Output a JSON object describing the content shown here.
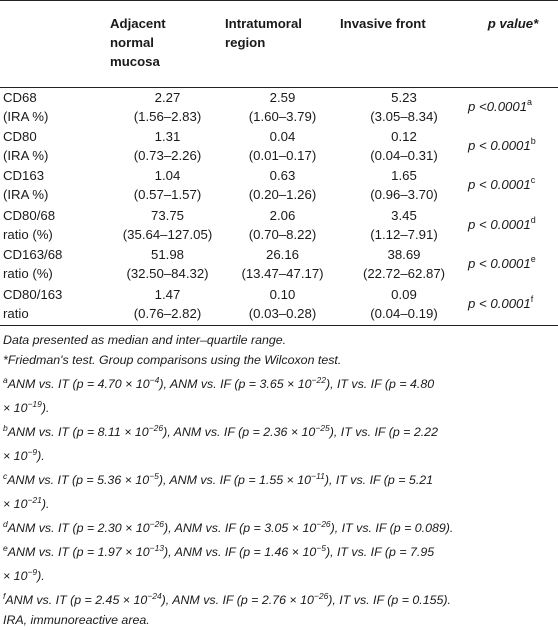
{
  "table": {
    "headers": [
      "",
      "Adjacent normal mucosa",
      "Intratumoral region",
      "Invasive front",
      "p value*"
    ],
    "header_lines": {
      "c1": [
        "Adjacent",
        "normal",
        "mucosa"
      ],
      "c2": [
        "Intratumoral",
        "region"
      ],
      "c3": [
        "Invasive front"
      ],
      "c4": [
        "p value*"
      ]
    },
    "rows": [
      {
        "label1": "CD68",
        "label2": "(IRA %)",
        "anm": "2.27",
        "anm_iqr": "(1.56–2.83)",
        "it": "2.59",
        "it_iqr": "(1.60–3.79)",
        "if": "5.23",
        "if_iqr": "(3.05–8.34)",
        "p": "p <0.0001",
        "p_sup": "a"
      },
      {
        "label1": "CD80",
        "label2": "(IRA %)",
        "anm": "1.31",
        "anm_iqr": "(0.73–2.26)",
        "it": "0.04",
        "it_iqr": "(0.01–0.17)",
        "if": "0.12",
        "if_iqr": "(0.04–0.31)",
        "p": "p < 0.0001",
        "p_sup": "b"
      },
      {
        "label1": "CD163",
        "label2": "(IRA %)",
        "anm": "1.04",
        "anm_iqr": "(0.57–1.57)",
        "it": "0.63",
        "it_iqr": "(0.20–1.26)",
        "if": "1.65",
        "if_iqr": "(0.96–3.70)",
        "p": "p < 0.0001",
        "p_sup": "c"
      },
      {
        "label1": "CD80/68",
        "label2": "ratio (%)",
        "anm": "73.75",
        "anm_iqr": "(35.64–127.05)",
        "it": "2.06",
        "it_iqr": "(0.70–8.22)",
        "if": "3.45",
        "if_iqr": "(1.12–7.91)",
        "p": "p < 0.0001",
        "p_sup": "d"
      },
      {
        "label1": "CD163/68",
        "label2": "ratio (%)",
        "anm": "51.98",
        "anm_iqr": "(32.50–84.32)",
        "it": "26.16",
        "it_iqr": "(13.47–47.17)",
        "if": "38.69",
        "if_iqr": "(22.72–62.87)",
        "p": "p < 0.0001",
        "p_sup": "e"
      },
      {
        "label1": "CD80/163",
        "label2": "ratio",
        "anm": "1.47",
        "anm_iqr": "(0.76–2.82)",
        "it": "0.10",
        "it_iqr": "(0.03–0.28)",
        "if": "0.09",
        "if_iqr": "(0.04–0.19)",
        "p": "p < 0.0001",
        "p_sup": "f"
      }
    ]
  },
  "notes": {
    "n1": "Data presented as median and inter–quartile range.",
    "n2": "*Friedman's test. Group comparisons using the Wilcoxon test.",
    "a": {
      "sup": "a",
      "l1": "ANM vs. IT (p = 4.70 × 10",
      "e1": "−4",
      "m1": "), ANM vs. IF (p = 3.65 × 10",
      "e2": "−22",
      "m2": "), IT vs. IF (p = 4.80",
      "l2": "× 10",
      "e3": "−19",
      "end": ")."
    },
    "b": {
      "sup": "b",
      "l1": "ANM vs. IT (p = 8.11 × 10",
      "e1": "−26",
      "m1": "), ANM vs. IF (p = 2.36 × 10",
      "e2": "−25",
      "m2": "), IT vs. IF (p = 2.22",
      "l2": "× 10",
      "e3": "−9",
      "end": ")."
    },
    "c": {
      "sup": "c",
      "l1": "ANM vs. IT (p = 5.36 × 10",
      "e1": "−5",
      "m1": "), ANM vs. IF (p = 1.55 × 10",
      "e2": "−11",
      "m2": "), IT vs. IF (p = 5.21",
      "l2": "× 10",
      "e3": "−21",
      "end": ")."
    },
    "d": {
      "sup": "d",
      "l1": "ANM vs. IT (p = 2.30 × 10",
      "e1": "−26",
      "m1": "), ANM vs. IF (p = 3.05 × 10",
      "e2": "−26",
      "m2": "), IT vs. IF (p = 0.089)."
    },
    "e": {
      "sup": "e",
      "l1": "ANM vs. IT (p = 1.97 × 10",
      "e1": "−13",
      "m1": "), ANM vs. IF (p = 1.46 × 10",
      "e2": "−5",
      "m2": "), IT vs. IF (p = 7.95",
      "l2": "× 10",
      "e3": "−9",
      "end": ")."
    },
    "f": {
      "sup": "f",
      "l1": "ANM vs. IT (p = 2.45 × 10",
      "e1": "−24",
      "m1": "), ANM vs. IF (p = 2.76 × 10",
      "e2": "−26",
      "m2": "), IT vs. IF (p = 0.155)."
    },
    "n3": "IRA, immunoreactive area."
  }
}
